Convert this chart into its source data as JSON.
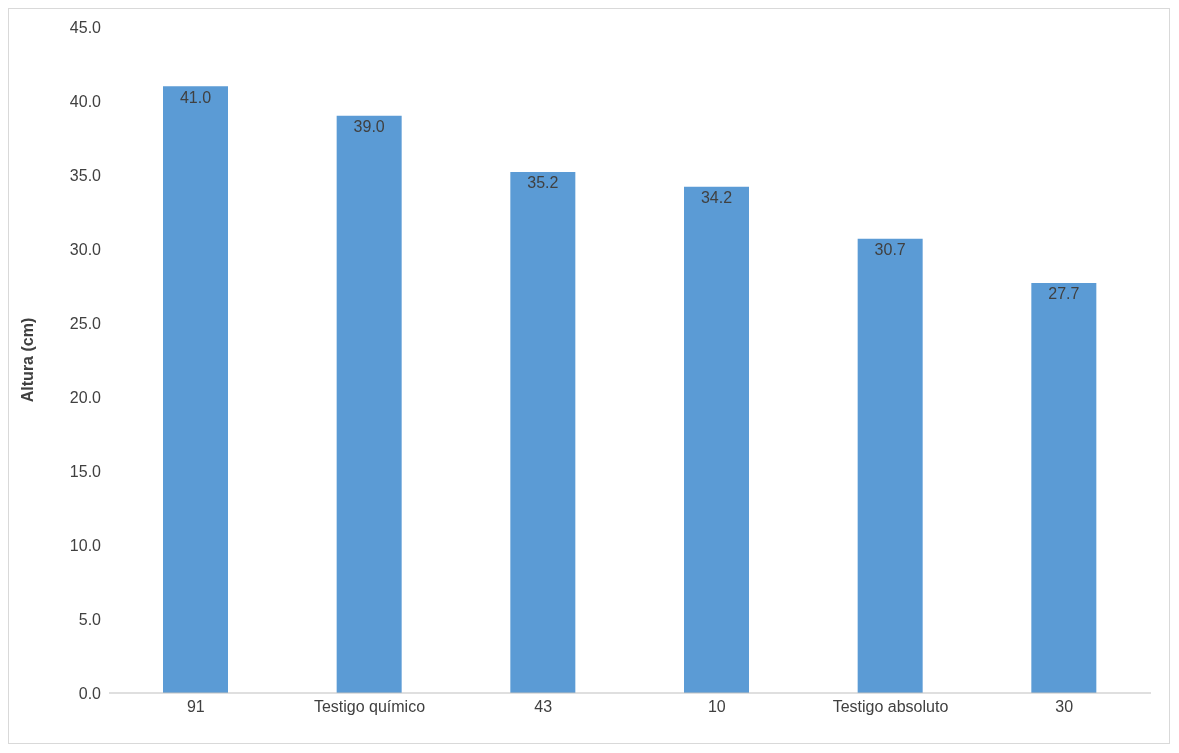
{
  "chart_data": {
    "type": "bar",
    "ylabel": "Altura (cm)",
    "categories": [
      "91",
      "Testigo químico",
      "43",
      "10",
      "Testigo absoluto",
      "30"
    ],
    "values": [
      41.0,
      39.0,
      35.2,
      34.2,
      30.7,
      27.7
    ],
    "value_labels": [
      "41.0",
      "39.0",
      "35.2",
      "34.2",
      "30.7",
      "27.7"
    ],
    "color": "#5b9bd5",
    "ylim": [
      0,
      45
    ],
    "yticks": [
      {
        "value": 0,
        "label": "0.0"
      },
      {
        "value": 5,
        "label": "5.0"
      },
      {
        "value": 10,
        "label": "10.0"
      },
      {
        "value": 15,
        "label": "15.0"
      },
      {
        "value": 20,
        "label": "20.0"
      },
      {
        "value": 25,
        "label": "25.0"
      },
      {
        "value": 30,
        "label": "30.0"
      },
      {
        "value": 35,
        "label": "35.0"
      },
      {
        "value": 40,
        "label": "40.0"
      },
      {
        "value": 45,
        "label": "45.0"
      }
    ],
    "grid": false
  }
}
